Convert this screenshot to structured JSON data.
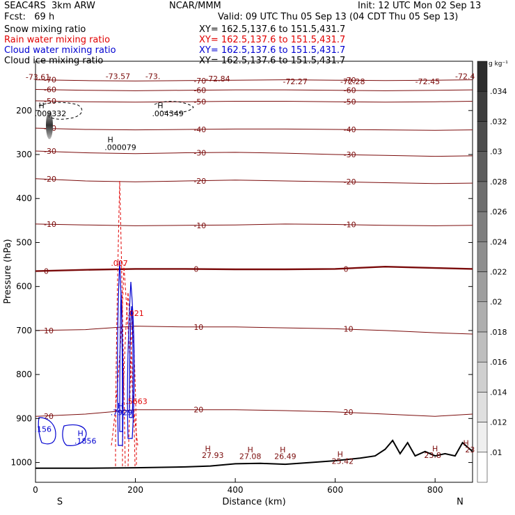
{
  "header": {
    "left_line1": "SEAC4RS  3km ARW",
    "left_line2": "Fcst:   69 h",
    "center_line1": "NCAR/MMM",
    "right_line1": "Init: 12 UTC Mon 02 Sep 13",
    "right_line2": "Valid: 09 UTC Thu 05 Sep 13 (04 CDT Thu 05 Sep 13)",
    "fields": [
      {
        "name": "Snow mixing ratio",
        "color": "#000000",
        "xy": "XY= 162.5,137.6 to 151.5,431.7"
      },
      {
        "name": "Rain water mixing ratio",
        "color": "#e00000",
        "xy": "XY= 162.5,137.6 to 151.5,431.7"
      },
      {
        "name": "Cloud water mixing ratio",
        "color": "#0000d0",
        "xy": "XY= 162.5,137.6 to 151.5,431.7"
      },
      {
        "name": "Cloud ice mixing ratio",
        "color": "#000000",
        "xy": "XY= 162.5,137.6 to 151.5,431.7"
      }
    ]
  },
  "chart_data": {
    "type": "contour",
    "xlabel": "Distance (km)",
    "ylabel": "Pressure (hPa)",
    "xlim": [
      0,
      875
    ],
    "ylim": [
      1045,
      88
    ],
    "x_ticks": [
      0,
      200,
      400,
      600,
      800
    ],
    "y_ticks": [
      200,
      300,
      400,
      500,
      600,
      700,
      800,
      900,
      1000
    ],
    "end_labels": {
      "left": "S",
      "right": "N"
    },
    "colorbar": {
      "unit": "g kg⁻¹",
      "ticks": [
        ".01",
        ".012",
        ".014",
        ".016",
        ".018",
        ".02",
        ".022",
        ".024",
        ".026",
        ".028",
        ".03",
        ".032",
        ".034"
      ]
    },
    "isotherm_color": "#7a0a0a",
    "isotherms": [
      {
        "label": "-70",
        "p": [
          130,
          132,
          133,
          132,
          131,
          130,
          131,
          132,
          131,
          130
        ]
      },
      {
        "label": "-60",
        "p": [
          152,
          154,
          155,
          154,
          153,
          153,
          154,
          155,
          154,
          153
        ]
      },
      {
        "label": "-50",
        "p": [
          178,
          180,
          181,
          180,
          179,
          179,
          180,
          181,
          180,
          179
        ]
      },
      {
        "label": "-40",
        "p": [
          240,
          243,
          244,
          243,
          242,
          242,
          243,
          244,
          245,
          244
        ]
      },
      {
        "label": "-30",
        "p": [
          292,
          296,
          298,
          296,
          295,
          297,
          300,
          302,
          304,
          303
        ]
      },
      {
        "label": "-20",
        "p": [
          355,
          360,
          362,
          360,
          358,
          360,
          362,
          364,
          366,
          365
        ]
      },
      {
        "label": "-10",
        "p": [
          458,
          460,
          462,
          461,
          460,
          458,
          459,
          461,
          462,
          461
        ]
      },
      {
        "label": "0",
        "p": [
          565,
          562,
          560,
          560,
          561,
          561,
          560,
          555,
          558,
          560
        ]
      },
      {
        "label": "10",
        "p": [
          700,
          698,
          690,
          692,
          692,
          694,
          696,
          700,
          705,
          708
        ]
      },
      {
        "label": "20",
        "p": [
          895,
          890,
          880,
          880,
          880,
          882,
          885,
          890,
          895,
          890
        ]
      }
    ],
    "profile_x": [
      0,
      100,
      200,
      300,
      400,
      500,
      600,
      700,
      800,
      875
    ],
    "terrain": {
      "x": [
        0,
        100,
        200,
        300,
        350,
        400,
        450,
        500,
        550,
        600,
        650,
        680,
        700,
        715,
        730,
        745,
        760,
        780,
        800,
        820,
        840,
        855,
        875
      ],
      "p": [
        1013,
        1013,
        1012,
        1010,
        1008,
        1003,
        1002,
        1004,
        1000,
        996,
        990,
        985,
        970,
        950,
        980,
        955,
        985,
        975,
        985,
        980,
        985,
        955,
        975
      ]
    },
    "annotations": [
      {
        "text": "-73.61",
        "x": 5,
        "p": 130,
        "color": "#7a0a0a"
      },
      {
        "text": "-73.57",
        "x": 165,
        "p": 128,
        "color": "#7a0a0a"
      },
      {
        "text": "-73.",
        "x": 235,
        "p": 128,
        "color": "#7a0a0a"
      },
      {
        "text": "-72.84",
        "x": 365,
        "p": 134,
        "color": "#7a0a0a"
      },
      {
        "text": "-72.27",
        "x": 520,
        "p": 140,
        "color": "#7a0a0a"
      },
      {
        "text": "-72.28",
        "x": 635,
        "p": 140,
        "color": "#7a0a0a"
      },
      {
        "text": "-72.45",
        "x": 785,
        "p": 140,
        "color": "#7a0a0a"
      },
      {
        "text": "-72.4",
        "x": 860,
        "p": 128,
        "color": "#7a0a0a"
      },
      {
        "text": "H",
        "x": 12,
        "p": 195,
        "color": "#000000"
      },
      {
        "text": ".009332",
        "x": 30,
        "p": 213,
        "color": "#000000"
      },
      {
        "text": "H",
        "x": 250,
        "p": 195,
        "color": "#000000"
      },
      {
        "text": ".004349",
        "x": 265,
        "p": 213,
        "color": "#000000"
      },
      {
        "text": "H",
        "x": 150,
        "p": 272,
        "color": "#000000"
      },
      {
        "text": ".000079",
        "x": 170,
        "p": 290,
        "color": "#000000"
      },
      {
        "text": "H",
        "x": 170,
        "p": 877,
        "color": "#0000d0"
      },
      {
        "text": ".7929",
        "x": 172,
        "p": 892,
        "color": "#0000d0"
      },
      {
        "text": ".156",
        "x": 15,
        "p": 930,
        "color": "#0000d0"
      },
      {
        "text": "H",
        "x": 90,
        "p": 940,
        "color": "#0000d0"
      },
      {
        "text": ".1856",
        "x": 100,
        "p": 957,
        "color": "#0000d0"
      },
      {
        "text": ".021",
        "x": 200,
        "p": 667,
        "color": "#e00000"
      },
      {
        "text": ".5663",
        "x": 202,
        "p": 867,
        "color": "#e00000"
      },
      {
        "text": ".007",
        "x": 168,
        "p": 553,
        "color": "#e00000"
      },
      {
        "text": "H",
        "x": 345,
        "p": 975,
        "color": "#7a0a0a"
      },
      {
        "text": "27.93",
        "x": 355,
        "p": 990,
        "color": "#7a0a0a"
      },
      {
        "text": "H",
        "x": 430,
        "p": 977,
        "color": "#7a0a0a"
      },
      {
        "text": "27.08",
        "x": 430,
        "p": 992,
        "color": "#7a0a0a"
      },
      {
        "text": "H",
        "x": 495,
        "p": 977,
        "color": "#7a0a0a"
      },
      {
        "text": "26.49",
        "x": 500,
        "p": 992,
        "color": "#7a0a0a"
      },
      {
        "text": "H",
        "x": 610,
        "p": 987,
        "color": "#7a0a0a"
      },
      {
        "text": "25.42",
        "x": 615,
        "p": 1003,
        "color": "#7a0a0a"
      },
      {
        "text": "H",
        "x": 800,
        "p": 975,
        "color": "#7a0a0a"
      },
      {
        "text": "23.8",
        "x": 795,
        "p": 990,
        "color": "#7a0a0a"
      },
      {
        "text": "H",
        "x": 862,
        "p": 962,
        "color": "#7a0a0a"
      },
      {
        "text": "23",
        "x": 870,
        "p": 977,
        "color": "#7a0a0a"
      }
    ]
  }
}
